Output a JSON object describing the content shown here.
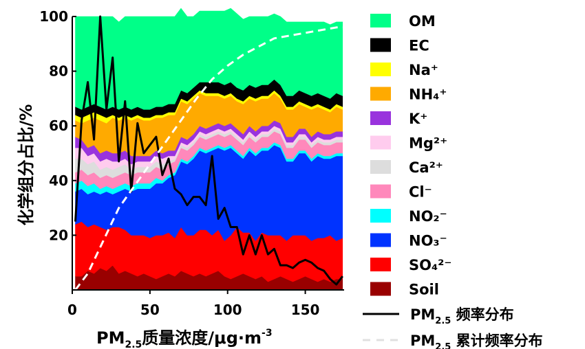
{
  "chart_data": {
    "type": "area",
    "xlabel": "PM2.5质量浓度/μg·m-3",
    "xlabel_parts": {
      "pre": "PM",
      "sub": "2.5",
      "mid": "质量浓度/μg·m",
      "sup": "-3"
    },
    "ylabel": "化学组分占比/%",
    "xlim": [
      0,
      175
    ],
    "ylim": [
      0,
      100
    ],
    "x_ticks": [
      "0",
      "50",
      "100",
      "150"
    ],
    "y_ticks": [
      "20",
      "40",
      "60",
      "80",
      "100"
    ],
    "grid": false,
    "legend_position": "right",
    "x": [
      2,
      6,
      10,
      14,
      18,
      22,
      26,
      30,
      34,
      38,
      42,
      46,
      50,
      54,
      58,
      62,
      66,
      70,
      74,
      78,
      82,
      86,
      90,
      94,
      98,
      102,
      106,
      110,
      114,
      118,
      122,
      126,
      130,
      134,
      138,
      142,
      146,
      150,
      154,
      158,
      162,
      166,
      170,
      174
    ],
    "stack_order": [
      "Soil",
      "SO₄²⁻",
      "NO₃⁻",
      "NO₂⁻",
      "Cl⁻",
      "Ca²⁺",
      "Mg²⁺",
      "K⁺",
      "NH₄⁺",
      "Na⁺",
      "EC",
      "OM"
    ],
    "series": [
      {
        "name": "Soil",
        "color": "#990000",
        "values": [
          5,
          5,
          7,
          6,
          8,
          7,
          9,
          6,
          7,
          6,
          5,
          6,
          5,
          4,
          5,
          6,
          5,
          7,
          6,
          5,
          6,
          5,
          6,
          7,
          5,
          4,
          5,
          6,
          5,
          4,
          5,
          3,
          4,
          5,
          4,
          3,
          4,
          5,
          4,
          3,
          4,
          3,
          4,
          4
        ]
      },
      {
        "name": "SO₄²⁻",
        "color": "#ff0000",
        "values": [
          19,
          20,
          16,
          18,
          15,
          15,
          14,
          17,
          15,
          14,
          15,
          14,
          14,
          16,
          15,
          15,
          14,
          16,
          14,
          15,
          16,
          17,
          14,
          15,
          13,
          16,
          18,
          15,
          16,
          14,
          16,
          17,
          16,
          15,
          14,
          17,
          16,
          15,
          14,
          16,
          15,
          17,
          14,
          15
        ]
      },
      {
        "name": "NO₃⁻",
        "color": "#0033ff",
        "values": [
          12,
          12,
          12,
          12,
          12,
          14,
          12,
          13,
          15,
          16,
          17,
          17,
          18,
          19,
          19,
          20,
          23,
          24,
          26,
          28,
          29,
          28,
          31,
          30,
          33,
          32,
          27,
          27,
          30,
          31,
          30,
          31,
          33,
          32,
          29,
          27,
          30,
          30,
          29,
          30,
          29,
          28,
          31,
          30
        ]
      },
      {
        "name": "NO₂⁻",
        "color": "#00ffff",
        "values": [
          3,
          3,
          3,
          3,
          2,
          2,
          2,
          2,
          2,
          2,
          2,
          2,
          2,
          2,
          1,
          1,
          1,
          1,
          1,
          1,
          1,
          1,
          1,
          1,
          1,
          1,
          1,
          1,
          1,
          1,
          1,
          1,
          1,
          1,
          1,
          1,
          1,
          1,
          1,
          1,
          1,
          1,
          1,
          1
        ]
      },
      {
        "name": "Cl⁻",
        "color": "#ff88bb",
        "values": [
          4,
          4,
          4,
          4,
          4,
          4,
          4,
          4,
          4,
          4,
          4,
          4,
          4,
          4,
          4,
          4,
          4,
          4,
          4,
          4,
          4,
          4,
          4,
          4,
          4,
          4,
          4,
          4,
          4,
          4,
          4,
          4,
          4,
          4,
          4,
          4,
          4,
          4,
          4,
          4,
          4,
          4,
          4,
          4
        ]
      },
      {
        "name": "Ca²⁺",
        "color": "#dddddd",
        "values": [
          5,
          4,
          4,
          4,
          3,
          3,
          3,
          3,
          3,
          2,
          2,
          2,
          2,
          2,
          2,
          1,
          1,
          1,
          1,
          1,
          1,
          1,
          1,
          1,
          1,
          1,
          1,
          1,
          1,
          1,
          1,
          1,
          1,
          1,
          1,
          1,
          1,
          1,
          1,
          1,
          1,
          1,
          1,
          1
        ]
      },
      {
        "name": "Mg²⁺",
        "color": "#ffccee",
        "values": [
          4,
          4,
          3,
          3,
          3,
          3,
          3,
          2,
          2,
          2,
          2,
          2,
          2,
          2,
          2,
          2,
          1,
          1,
          1,
          1,
          1,
          1,
          1,
          1,
          1,
          1,
          1,
          1,
          1,
          1,
          1,
          1,
          1,
          1,
          1,
          1,
          1,
          1,
          1,
          1,
          1,
          1,
          1,
          1
        ]
      },
      {
        "name": "K⁺",
        "color": "#9933dd",
        "values": [
          4,
          3,
          3,
          3,
          3,
          3,
          3,
          3,
          3,
          3,
          2,
          2,
          2,
          2,
          2,
          2,
          2,
          2,
          2,
          2,
          2,
          2,
          2,
          2,
          2,
          2,
          2,
          2,
          2,
          2,
          2,
          2,
          2,
          2,
          2,
          2,
          2,
          2,
          2,
          2,
          2,
          2,
          2,
          2
        ]
      },
      {
        "name": "NH₄⁺",
        "color": "#ffaa00",
        "values": [
          6,
          6,
          10,
          10,
          12,
          10,
          13,
          12,
          12,
          13,
          14,
          13,
          13,
          12,
          13,
          13,
          13,
          13,
          13,
          13,
          12,
          12,
          11,
          10,
          10,
          10,
          10,
          11,
          10,
          11,
          10,
          10,
          10,
          9,
          10,
          10,
          9,
          8,
          10,
          9,
          9,
          8,
          9,
          8
        ]
      },
      {
        "name": "Na⁺",
        "color": "#ffff00",
        "values": [
          2,
          2,
          2,
          2,
          2,
          2,
          1,
          1,
          1,
          1,
          1,
          1,
          1,
          1,
          1,
          1,
          1,
          1,
          1,
          1,
          1,
          1,
          1,
          1,
          1,
          1,
          1,
          1,
          1,
          1,
          1,
          1,
          1,
          1,
          1,
          1,
          1,
          1,
          1,
          1,
          1,
          1,
          1,
          1
        ]
      },
      {
        "name": "EC",
        "color": "#000000",
        "values": [
          3,
          3,
          3,
          3,
          3,
          3,
          3,
          3,
          3,
          3,
          3,
          3,
          3,
          3,
          3,
          3,
          3,
          3,
          3,
          3,
          3,
          4,
          4,
          4,
          4,
          4,
          4,
          4,
          4,
          4,
          4,
          4,
          4,
          4,
          4,
          4,
          4,
          4,
          4,
          4,
          4,
          4,
          4,
          4
        ]
      },
      {
        "name": "OM",
        "color": "#00ff88",
        "values": [
          33,
          34,
          33,
          32,
          33,
          34,
          33,
          32,
          33,
          34,
          33,
          34,
          34,
          33,
          33,
          32,
          32,
          30,
          28,
          26,
          26,
          26,
          26,
          26,
          27,
          27,
          27,
          26,
          25,
          26,
          25,
          25,
          24,
          25,
          27,
          27,
          25,
          26,
          27,
          26,
          27,
          27,
          26,
          27
        ]
      }
    ],
    "lines": [
      {
        "name": "PM2.5 频率分布",
        "style": "solid",
        "color": "#000000",
        "x": [
          2,
          6,
          10,
          14,
          18,
          22,
          26,
          30,
          34,
          38,
          42,
          46,
          50,
          54,
          58,
          62,
          66,
          70,
          74,
          78,
          82,
          86,
          90,
          94,
          98,
          102,
          106,
          110,
          114,
          118,
          122,
          126,
          130,
          134,
          138,
          142,
          146,
          150,
          154,
          158,
          162,
          166,
          170,
          174
        ],
        "values": [
          25,
          62,
          76,
          55,
          100,
          66,
          85,
          47,
          69,
          36,
          61,
          50,
          53,
          56,
          42,
          48,
          37,
          35,
          31,
          34,
          34,
          31,
          49,
          26,
          30,
          23,
          23,
          13,
          20,
          13,
          20,
          13,
          15,
          9,
          9,
          8,
          10,
          11,
          10,
          8,
          7,
          4,
          2,
          5
        ]
      },
      {
        "name": "PM2.5 累计频率分布",
        "style": "dashed",
        "color": "#ffffff",
        "x": [
          2,
          10,
          20,
          30,
          40,
          50,
          60,
          70,
          80,
          90,
          100,
          110,
          120,
          130,
          140,
          150,
          160,
          170,
          174
        ],
        "values": [
          0,
          6,
          18,
          30,
          38,
          46,
          54,
          62,
          70,
          77,
          82,
          86,
          89,
          92,
          93,
          94,
          95,
          96,
          96
        ]
      }
    ],
    "legend": [
      {
        "text": "OM",
        "color": "#00ff88"
      },
      {
        "text": "EC",
        "color": "#000000"
      },
      {
        "text": "Na⁺",
        "color": "#ffff00"
      },
      {
        "text": "NH₄⁺",
        "color": "#ffaa00"
      },
      {
        "text": "K⁺",
        "color": "#9933dd"
      },
      {
        "text": "Mg²⁺",
        "color": "#ffccee"
      },
      {
        "text": "Ca²⁺",
        "color": "#dddddd"
      },
      {
        "text": "Cl⁻",
        "color": "#ff88bb"
      },
      {
        "text": "NO₂⁻",
        "color": "#00ffff"
      },
      {
        "text": "NO₃⁻",
        "color": "#0033ff"
      },
      {
        "text": "SO₄²⁻",
        "color": "#ff0000"
      },
      {
        "text": "Soil",
        "color": "#990000"
      }
    ],
    "line_legend": [
      {
        "pre": "PM",
        "sub": "2.5",
        "post": " 频率分布",
        "style": "solid",
        "color": "#000000"
      },
      {
        "pre": "PM",
        "sub": "2.5",
        "post": " 累计频率分布",
        "style": "dashed",
        "color": "#e0e0e0"
      }
    ]
  }
}
